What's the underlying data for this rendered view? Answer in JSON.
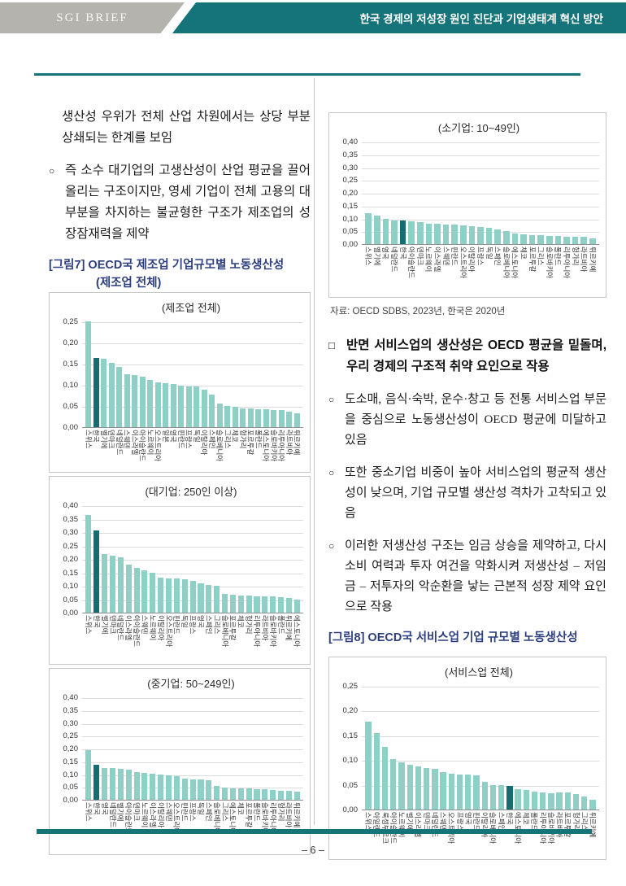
{
  "header": {
    "brand": "SGI BRIEF",
    "doc_title": "한국 경제의 저성장 원인 진단과 기업생태계 혁신 방안"
  },
  "colors": {
    "teal": "#15737a",
    "brand_gray": "#b4b3ae",
    "bar": "#8fd0c6",
    "bar_highlight": "#156d72",
    "caption_navy": "#2d3e7f"
  },
  "left_column": {
    "paragraph_continuation": "생산성 우위가 전체 산업 차원에서는 상당 부분 상쇄되는 한계를 보임",
    "bullet": {
      "marker": "○",
      "text": "즉 소수 대기업의 고생산성이 산업 평균을 끌어올리는 구조이지만, 영세 기업이 전체 고용의 대부분을 차지하는 불균형한 구조가 제조업의 성장잠재력을 제약"
    },
    "figure7_caption_line1": "[그림7] OECD국  제조업  기업규모별  노동생산성",
    "figure7_caption_line2": "(제조업 전체)"
  },
  "right_column": {
    "source_note": "자료: OECD SDBS, 2023년, 한국은 2020년",
    "heading": {
      "marker": "□",
      "text": "반면 서비스업의 생산성은 OECD 평균을 밑돌며, 우리 경제의 구조적 취약 요인으로 작용"
    },
    "bullets": [
      {
        "marker": "○",
        "text": "도소매, 음식·숙박, 운수·창고 등 전통 서비스업 부문을 중심으로 노동생산성이 OECD 평균에 미달하고 있음"
      },
      {
        "marker": "○",
        "text": "또한 중소기업 비중이 높아 서비스업의 평균적 생산성이 낮으며, 기업 규모별 생산성 격차가 고착되고 있음"
      },
      {
        "marker": "○",
        "text": "이러한 저생산성 구조는 임금 상승을 제약하고, 다시 소비 여력과 투자 여건을 약화시켜 저생산성 – 저임금 – 저투자의 악순환을 낳는 근본적 성장 제약 요인으로 작용"
      }
    ],
    "figure8_caption": "[그림8] OECD국 서비스업 기업 규모별 노동생산성"
  },
  "footer": {
    "page_number": "– 6 –"
  },
  "chart_data": [
    {
      "type": "bar",
      "title": "(제조업 전체)",
      "ylim": [
        0,
        0.25
      ],
      "ytick_step": 0.05,
      "grid": true,
      "legend": "none",
      "highlight_category": "한국",
      "highlight_index": 1,
      "categories": [
        "스위스",
        "한국",
        "벨기에",
        "덴마크",
        "네덜란드",
        "스웨덴",
        "이스라엘",
        "아이슬란드",
        "노르웨이",
        "오스트리아",
        "일본",
        "영국",
        "핀란드",
        "프랑스",
        "독일",
        "이탈리아",
        "스페인",
        "슬로베니아",
        "그리스",
        "체코",
        "헝가리",
        "포르투갈",
        "폴란드",
        "에스토니아",
        "슬로바키아",
        "리투아니아",
        "라트비아",
        "튀르키예"
      ],
      "values": [
        0.25,
        0.163,
        0.161,
        0.152,
        0.142,
        0.125,
        0.124,
        0.12,
        0.112,
        0.105,
        0.103,
        0.102,
        0.098,
        0.097,
        0.096,
        0.089,
        0.077,
        0.056,
        0.05,
        0.048,
        0.045,
        0.044,
        0.043,
        0.042,
        0.041,
        0.041,
        0.036,
        0.033
      ]
    },
    {
      "type": "bar",
      "title": "(대기업: 250인 이상)",
      "ylim": [
        0,
        0.4
      ],
      "ytick_step": 0.05,
      "grid": true,
      "legend": "none",
      "highlight_category": "한국",
      "highlight_index": 1,
      "categories": [
        "스위스",
        "한국",
        "벨기에",
        "덴마크",
        "네덜란드",
        "이스라엘",
        "아이슬란드",
        "스웨덴",
        "노르웨이",
        "이탈리아",
        "오스트리아",
        "핀란드",
        "독일",
        "프랑스",
        "영국",
        "스페인",
        "그리스",
        "슬로베니아",
        "포르투갈",
        "체코",
        "헝가리",
        "리투아니아",
        "라트비아",
        "슬로바키아",
        "폴란드",
        "튀르키예",
        "에스토니아"
      ],
      "values": [
        0.365,
        0.305,
        0.218,
        0.212,
        0.207,
        0.18,
        0.167,
        0.157,
        0.148,
        0.13,
        0.128,
        0.127,
        0.123,
        0.118,
        0.11,
        0.103,
        0.1,
        0.07,
        0.068,
        0.064,
        0.063,
        0.062,
        0.06,
        0.06,
        0.057,
        0.056,
        0.05
      ]
    },
    {
      "type": "bar",
      "title": "(중기업: 50~249인)",
      "ylim": [
        0,
        0.4
      ],
      "ytick_step": 0.05,
      "grid": true,
      "legend": "none",
      "highlight_category": "한국",
      "highlight_index": 1,
      "categories": [
        "스위스",
        "한국",
        "영국",
        "네덜란드",
        "벨기에",
        "아이슬란드",
        "덴마크",
        "노르웨이",
        "이스라엘",
        "이탈리아",
        "스웨덴",
        "오스트리아",
        "핀란드",
        "프랑스",
        "독일",
        "스페인",
        "슬로베니아",
        "그리스",
        "에스토니아",
        "체코",
        "포르투갈",
        "폴란드",
        "슬로바키아",
        "리투아니아",
        "헝가리",
        "라트비아",
        "튀르키예"
      ],
      "values": [
        0.193,
        0.138,
        0.123,
        0.123,
        0.121,
        0.116,
        0.108,
        0.104,
        0.102,
        0.1,
        0.096,
        0.093,
        0.082,
        0.081,
        0.079,
        0.075,
        0.054,
        0.049,
        0.046,
        0.045,
        0.043,
        0.041,
        0.04,
        0.038,
        0.036,
        0.034,
        0.031
      ]
    },
    {
      "type": "bar",
      "title": "(소기업: 10~49인)",
      "ylim": [
        0,
        0.4
      ],
      "ytick_step": 0.05,
      "grid": true,
      "legend": "none",
      "highlight_category": "한국",
      "highlight_index": 4,
      "categories": [
        "스위스",
        "벨기에",
        "영국",
        "네덜란드",
        "한국",
        "아이슬란드",
        "덴마크",
        "노르웨이",
        "이스라엘",
        "스웨덴",
        "핀란드",
        "오스트리아",
        "이탈리아",
        "프랑스",
        "독일",
        "스페인",
        "슬로베니아",
        "에스토니아",
        "체코",
        "포르투갈",
        "그리스",
        "슬로바키아",
        "폴란드",
        "리투아니아",
        "헝가리",
        "라트비아",
        "튀르키예"
      ],
      "values": [
        0.122,
        0.11,
        0.1,
        0.093,
        0.092,
        0.089,
        0.085,
        0.081,
        0.078,
        0.076,
        0.075,
        0.074,
        0.07,
        0.066,
        0.064,
        0.057,
        0.051,
        0.04,
        0.037,
        0.036,
        0.035,
        0.032,
        0.031,
        0.03,
        0.029,
        0.028,
        0.022
      ]
    },
    {
      "type": "bar",
      "title": "(서비스업 전체)",
      "ylim": [
        0,
        0.25
      ],
      "ytick_step": 0.05,
      "grid": true,
      "legend": "none",
      "highlight_category": "한국",
      "highlight_index": 17,
      "categories": [
        "스위스",
        "아일랜드",
        "룩셈부르크",
        "아이슬란드",
        "노르웨이",
        "벨기에",
        "이스라엘",
        "덴마크",
        "네덜란드",
        "스웨덴",
        "오스트리아",
        "프랑스",
        "영국",
        "핀란드",
        "이탈리아",
        "슬로베니아",
        "스페인",
        "한국",
        "에스토니아",
        "체코",
        "폴란드",
        "리투아니아",
        "슬로바키아",
        "라트비아",
        "포르투갈",
        "헝가리",
        "그리스",
        "튀르키예"
      ],
      "values": [
        0.178,
        0.154,
        0.127,
        0.102,
        0.096,
        0.09,
        0.087,
        0.084,
        0.083,
        0.076,
        0.073,
        0.071,
        0.07,
        0.069,
        0.056,
        0.05,
        0.05,
        0.048,
        0.041,
        0.04,
        0.036,
        0.034,
        0.033,
        0.034,
        0.034,
        0.032,
        0.027,
        0.02
      ]
    }
  ]
}
